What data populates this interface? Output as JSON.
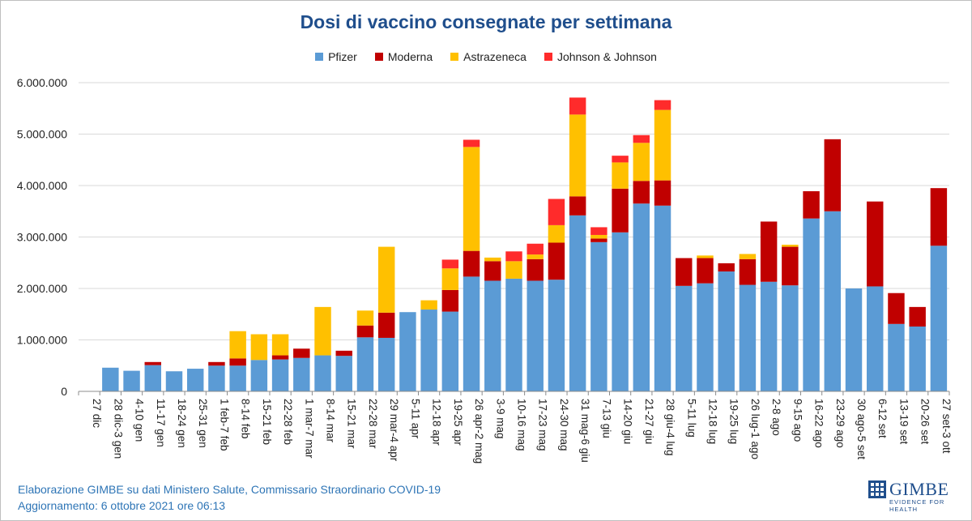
{
  "chart_data": {
    "type": "bar",
    "stacked": true,
    "title": "Dosi di vaccino consegnate per settimana",
    "xlabel": "",
    "ylabel": "",
    "ylim": [
      0,
      6000000
    ],
    "yticks": [
      0,
      1000000,
      2000000,
      3000000,
      4000000,
      5000000,
      6000000
    ],
    "ytick_labels": [
      "0",
      "1.000.000",
      "2.000.000",
      "3.000.000",
      "4.000.000",
      "5.000.000",
      "6.000.000"
    ],
    "grid": true,
    "legend_position": "top",
    "categories": [
      "27 dic",
      "28 dic-3 gen",
      "4-10 gen",
      "11-17 gen",
      "18-24 gen",
      "25-31 gen",
      "1 feb-7 feb",
      "8-14 feb",
      "15-21 feb",
      "22-28 feb",
      "1 mar-7 mar",
      "8-14 mar",
      "15-21 mar",
      "22-28 mar",
      "29 mar-4 apr",
      "5-11 apr",
      "12-18 apr",
      "19-25 apr",
      "26 apr-2 mag",
      "3-9 mag",
      "10-16 mag",
      "17-23 mag",
      "24-30 mag",
      "31 mag-6 giu",
      "7-13 giu",
      "14-20 giu",
      "21-27 giu",
      "28 giu-4 lug",
      "5-11 lug",
      "12-18 lug",
      "19-25 lug",
      "26 lug-1 ago",
      "2-8 ago",
      "9-15 ago",
      "16-22 ago",
      "23-29 ago",
      "30 ago-5 set",
      "6-12 set",
      "13-19 set",
      "20-26 set",
      "27 set-3 ott"
    ],
    "series": [
      {
        "name": "Pfizer",
        "color": "#5b9bd5",
        "values": [
          0,
          460000,
          400000,
          510000,
          390000,
          440000,
          500000,
          500000,
          610000,
          620000,
          650000,
          700000,
          690000,
          1050000,
          1040000,
          1540000,
          1590000,
          1550000,
          2230000,
          2150000,
          2190000,
          2150000,
          2170000,
          3420000,
          2900000,
          3090000,
          3650000,
          3610000,
          2050000,
          2100000,
          2330000,
          2070000,
          2130000,
          2060000,
          3360000,
          3500000,
          2000000,
          2040000,
          1310000,
          1260000,
          2830000
        ]
      },
      {
        "name": "Moderna",
        "color": "#c00000",
        "values": [
          0,
          0,
          0,
          60000,
          0,
          0,
          70000,
          140000,
          0,
          80000,
          180000,
          0,
          100000,
          230000,
          490000,
          0,
          0,
          420000,
          500000,
          380000,
          0,
          420000,
          720000,
          370000,
          70000,
          850000,
          440000,
          490000,
          540000,
          490000,
          160000,
          500000,
          1170000,
          750000,
          530000,
          1400000,
          0,
          1650000,
          600000,
          380000,
          1120000
        ]
      },
      {
        "name": "Astrazeneca",
        "color": "#ffc000",
        "values": [
          0,
          0,
          0,
          0,
          0,
          0,
          0,
          530000,
          500000,
          410000,
          0,
          940000,
          0,
          290000,
          1280000,
          0,
          180000,
          420000,
          2020000,
          70000,
          340000,
          90000,
          340000,
          1590000,
          70000,
          510000,
          740000,
          1370000,
          0,
          50000,
          0,
          100000,
          0,
          40000,
          0,
          0,
          0,
          0,
          0,
          0,
          0
        ]
      },
      {
        "name": "Johnson & Johnson",
        "color": "#ff2b2b",
        "values": [
          0,
          0,
          0,
          0,
          0,
          0,
          0,
          0,
          0,
          0,
          0,
          0,
          0,
          0,
          0,
          0,
          0,
          170000,
          140000,
          0,
          190000,
          210000,
          510000,
          330000,
          150000,
          130000,
          150000,
          190000,
          0,
          0,
          0,
          0,
          0,
          0,
          0,
          0,
          0,
          0,
          0,
          0,
          0
        ]
      }
    ]
  },
  "footer": {
    "line1": "Elaborazione GIMBE su dati Ministero Salute, Commissario Straordinario COVID-19",
    "line2": "Aggiornamento: 6 ottobre 2021 ore 06:13"
  },
  "logo": {
    "text": "GIMBE",
    "subtitle": "EVIDENCE FOR HEALTH",
    "color": "#1f4e8c"
  }
}
